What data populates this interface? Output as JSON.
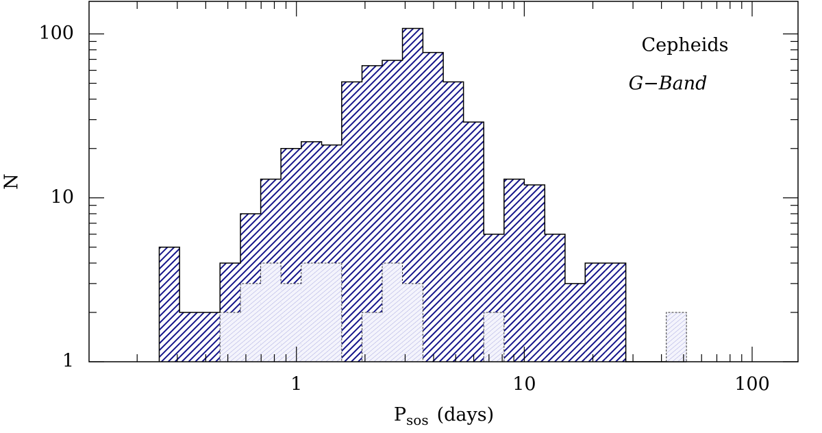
{
  "chart_data": {
    "type": "histogram",
    "xlabel": "P",
    "xlabel_sub": "sos",
    "xlabel_unit": "(days)",
    "ylabel": "N",
    "annotations": [
      "Cepheids",
      "G−Band"
    ],
    "xlog": true,
    "ylog": true,
    "xlim": [
      0.123,
      159
    ],
    "ylim": [
      1,
      158
    ],
    "xticks": [
      1,
      10,
      100
    ],
    "yticks": [
      1,
      10,
      100
    ],
    "xminorticks": [
      0.2,
      0.3,
      0.4,
      0.5,
      0.6,
      0.7,
      0.8,
      0.9,
      2,
      3,
      4,
      5,
      6,
      7,
      8,
      9,
      20,
      30,
      40,
      50,
      60,
      70,
      80,
      90
    ],
    "yminorticks": [
      2,
      3,
      4,
      5,
      6,
      7,
      8,
      9,
      20,
      30,
      40,
      50,
      60,
      70,
      80,
      90
    ],
    "bins": [
      0.25,
      0.307,
      0.377,
      0.462,
      0.568,
      0.697,
      0.855,
      1.05,
      1.29,
      1.58,
      1.94,
      2.38,
      2.92,
      3.59,
      4.41,
      5.41,
      6.64,
      8.15,
      10.0,
      12.3,
      15.1,
      18.5,
      22.7,
      27.9,
      34.2,
      42.0,
      51.5
    ],
    "series": [
      {
        "color": "#14148a",
        "values": [
          5,
          2,
          2,
          4,
          8,
          13,
          20,
          22,
          21,
          51,
          64,
          69,
          108,
          77,
          51,
          29,
          6,
          13,
          12,
          6,
          3,
          4,
          4,
          0,
          0,
          0
        ]
      },
      {
        "color": "#a8a8e0",
        "values": [
          0,
          0,
          0,
          2,
          3,
          4,
          3,
          4,
          4,
          0,
          2,
          4,
          3,
          0,
          0,
          0,
          2,
          0,
          0,
          0,
          0,
          0,
          0,
          0,
          0,
          2
        ]
      }
    ]
  }
}
